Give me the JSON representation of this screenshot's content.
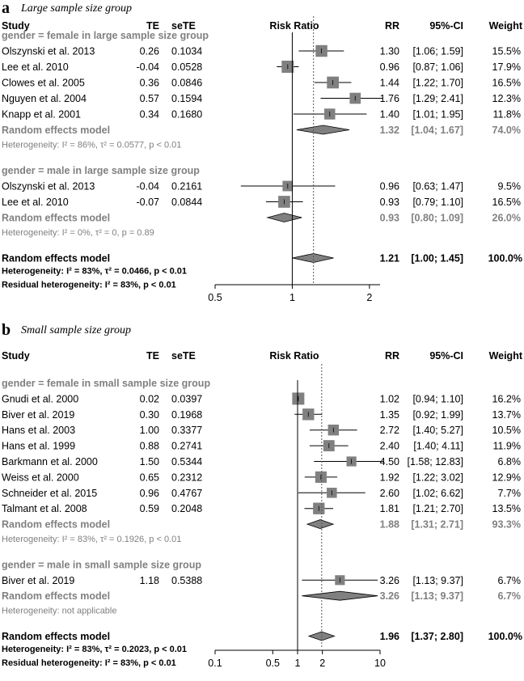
{
  "chart_data": [
    {
      "type": "forest",
      "panel": "a",
      "title": "Large sample size group",
      "columns": {
        "study": "Study",
        "te": "TE",
        "sete": "seTE",
        "plot": "Risk Ratio",
        "rr": "RR",
        "ci": "95%-CI",
        "weight": "Weight"
      },
      "scale": "log",
      "xlim": [
        0.5,
        2.2
      ],
      "ticks": [
        {
          "value": 0.5,
          "label": "0.5"
        },
        {
          "value": 1,
          "label": "1"
        },
        {
          "value": 2,
          "label": "2"
        }
      ],
      "overall_reference": 1.21,
      "groups": [
        {
          "header": "gender = female in large sample size group",
          "studies": [
            {
              "name": "Olszynski et al. 2013",
              "te": "0.26",
              "sete": "0.1034",
              "rr": 1.3,
              "lo": 1.06,
              "hi": 1.59,
              "rr_text": "1.30",
              "ci_text": "[1.06; 1.59]",
              "weight": "15.5%"
            },
            {
              "name": "Lee et al. 2010",
              "te": "-0.04",
              "sete": "0.0528",
              "rr": 0.96,
              "lo": 0.87,
              "hi": 1.06,
              "rr_text": "0.96",
              "ci_text": "[0.87; 1.06]",
              "weight": "17.9%"
            },
            {
              "name": "Clowes et al. 2005",
              "te": "0.36",
              "sete": "0.0846",
              "rr": 1.44,
              "lo": 1.22,
              "hi": 1.7,
              "rr_text": "1.44",
              "ci_text": "[1.22; 1.70]",
              "weight": "16.5%"
            },
            {
              "name": "Nguyen et al. 2004",
              "te": "0.57",
              "sete": "0.1594",
              "rr": 1.76,
              "lo": 1.29,
              "hi": 2.41,
              "rr_text": "1.76",
              "ci_text": "[1.29; 2.41]",
              "weight": "12.3%"
            },
            {
              "name": "Knapp et al. 2001",
              "te": "0.34",
              "sete": "0.1680",
              "rr": 1.4,
              "lo": 1.01,
              "hi": 1.95,
              "rr_text": "1.40",
              "ci_text": "[1.01; 1.95]",
              "weight": "11.8%"
            }
          ],
          "summary": {
            "label": "Random effects model",
            "rr": 1.32,
            "lo": 1.04,
            "hi": 1.67,
            "rr_text": "1.32",
            "ci_text": "[1.04; 1.67]",
            "weight": "74.0%"
          },
          "heterogeneity": "Heterogeneity: I² = 86%, τ² = 0.0577, p < 0.01"
        },
        {
          "header": "gender = male in large sample size group",
          "studies": [
            {
              "name": "Olszynski et al. 2013",
              "te": "-0.04",
              "sete": "0.2161",
              "rr": 0.96,
              "lo": 0.63,
              "hi": 1.47,
              "rr_text": "0.96",
              "ci_text": "[0.63; 1.47]",
              "weight": "9.5%"
            },
            {
              "name": "Lee et al. 2010",
              "te": "-0.07",
              "sete": "0.0844",
              "rr": 0.93,
              "lo": 0.79,
              "hi": 1.1,
              "rr_text": "0.93",
              "ci_text": "[0.79; 1.10]",
              "weight": "16.5%"
            }
          ],
          "summary": {
            "label": "Random effects model",
            "rr": 0.93,
            "lo": 0.8,
            "hi": 1.09,
            "rr_text": "0.93",
            "ci_text": "[0.80; 1.09]",
            "weight": "26.0%"
          },
          "heterogeneity": "Heterogeneity: I² = 0%, τ² = 0, p = 0.89"
        }
      ],
      "overall": {
        "label": "Random effects model",
        "rr": 1.21,
        "lo": 1.0,
        "hi": 1.45,
        "rr_text": "1.21",
        "ci_text": "[1.00; 1.45]",
        "weight": "100.0%"
      },
      "overall_heterogeneity": "Heterogeneity: I² = 83%, τ² = 0.0466, p < 0.01",
      "residual_heterogeneity": "Residual heterogeneity: I² = 83%, p < 0.01"
    },
    {
      "type": "forest",
      "panel": "b",
      "title": "Small sample size group",
      "columns": {
        "study": "Study",
        "te": "TE",
        "sete": "seTE",
        "plot": "Risk Ratio",
        "rr": "RR",
        "ci": "95%-CI",
        "weight": "Weight"
      },
      "scale": "log",
      "xlim": [
        0.1,
        10
      ],
      "ticks": [
        {
          "value": 0.1,
          "label": "0.1"
        },
        {
          "value": 0.5,
          "label": "0.5"
        },
        {
          "value": 1,
          "label": "1"
        },
        {
          "value": 2,
          "label": "2"
        },
        {
          "value": 10,
          "label": "10"
        }
      ],
      "overall_reference": 1.96,
      "groups": [
        {
          "header": "gender = female in small sample size group",
          "studies": [
            {
              "name": "Gnudi et al. 2000",
              "te": "0.02",
              "sete": "0.0397",
              "rr": 1.02,
              "lo": 0.94,
              "hi": 1.1,
              "rr_text": "1.02",
              "ci_text": "[0.94; 1.10]",
              "weight": "16.2%"
            },
            {
              "name": "Biver et al. 2019",
              "te": "0.30",
              "sete": "0.1968",
              "rr": 1.35,
              "lo": 0.92,
              "hi": 1.99,
              "rr_text": "1.35",
              "ci_text": "[0.92; 1.99]",
              "weight": "13.7%"
            },
            {
              "name": "Hans et al. 2003",
              "te": "1.00",
              "sete": "0.3377",
              "rr": 2.72,
              "lo": 1.4,
              "hi": 5.27,
              "rr_text": "2.72",
              "ci_text": "[1.40; 5.27]",
              "weight": "10.5%"
            },
            {
              "name": "Hans et al. 1999",
              "te": "0.88",
              "sete": "0.2741",
              "rr": 2.4,
              "lo": 1.4,
              "hi": 4.11,
              "rr_text": "2.40",
              "ci_text": "[1.40; 4.11]",
              "weight": "11.9%"
            },
            {
              "name": "Barkmann et al. 2000",
              "te": "1.50",
              "sete": "0.5344",
              "rr": 4.5,
              "lo": 1.58,
              "hi": 12.83,
              "rr_text": "4.50",
              "ci_text": "[1.58; 12.83]",
              "weight": "6.8%"
            },
            {
              "name": "Weiss et al. 2000",
              "te": "0.65",
              "sete": "0.2312",
              "rr": 1.92,
              "lo": 1.22,
              "hi": 3.02,
              "rr_text": "1.92",
              "ci_text": "[1.22; 3.02]",
              "weight": "12.9%"
            },
            {
              "name": "Schneider et al. 2015",
              "te": "0.96",
              "sete": "0.4767",
              "rr": 2.6,
              "lo": 1.02,
              "hi": 6.62,
              "rr_text": "2.60",
              "ci_text": "[1.02; 6.62]",
              "weight": "7.7%"
            },
            {
              "name": "Talmant et al. 2008",
              "te": "0.59",
              "sete": "0.2048",
              "rr": 1.81,
              "lo": 1.21,
              "hi": 2.7,
              "rr_text": "1.81",
              "ci_text": "[1.21; 2.70]",
              "weight": "13.5%"
            }
          ],
          "summary": {
            "label": "Random effects model",
            "rr": 1.88,
            "lo": 1.31,
            "hi": 2.71,
            "rr_text": "1.88",
            "ci_text": "[1.31; 2.71]",
            "weight": "93.3%"
          },
          "heterogeneity": "Heterogeneity: I² = 83%, τ² = 0.1926, p < 0.01"
        },
        {
          "header": "gender = male in small sample size group",
          "studies": [
            {
              "name": "Biver et al. 2019",
              "te": "1.18",
              "sete": "0.5388",
              "rr": 3.26,
              "lo": 1.13,
              "hi": 9.37,
              "rr_text": "3.26",
              "ci_text": "[1.13; 9.37]",
              "weight": "6.7%"
            }
          ],
          "summary": {
            "label": "Random effects model",
            "rr": 3.26,
            "lo": 1.13,
            "hi": 9.37,
            "rr_text": "3.26",
            "ci_text": "[1.13; 9.37]",
            "weight": "6.7%"
          },
          "heterogeneity": "Heterogeneity: not applicable"
        }
      ],
      "overall": {
        "label": "Random effects model",
        "rr": 1.96,
        "lo": 1.37,
        "hi": 2.8,
        "rr_text": "1.96",
        "ci_text": "[1.37; 2.80]",
        "weight": "100.0%"
      },
      "overall_heterogeneity": "Heterogeneity: I² = 83%, τ² = 0.2023, p < 0.01",
      "residual_heterogeneity": "Residual heterogeneity: I² = 83%, p < 0.01"
    }
  ]
}
